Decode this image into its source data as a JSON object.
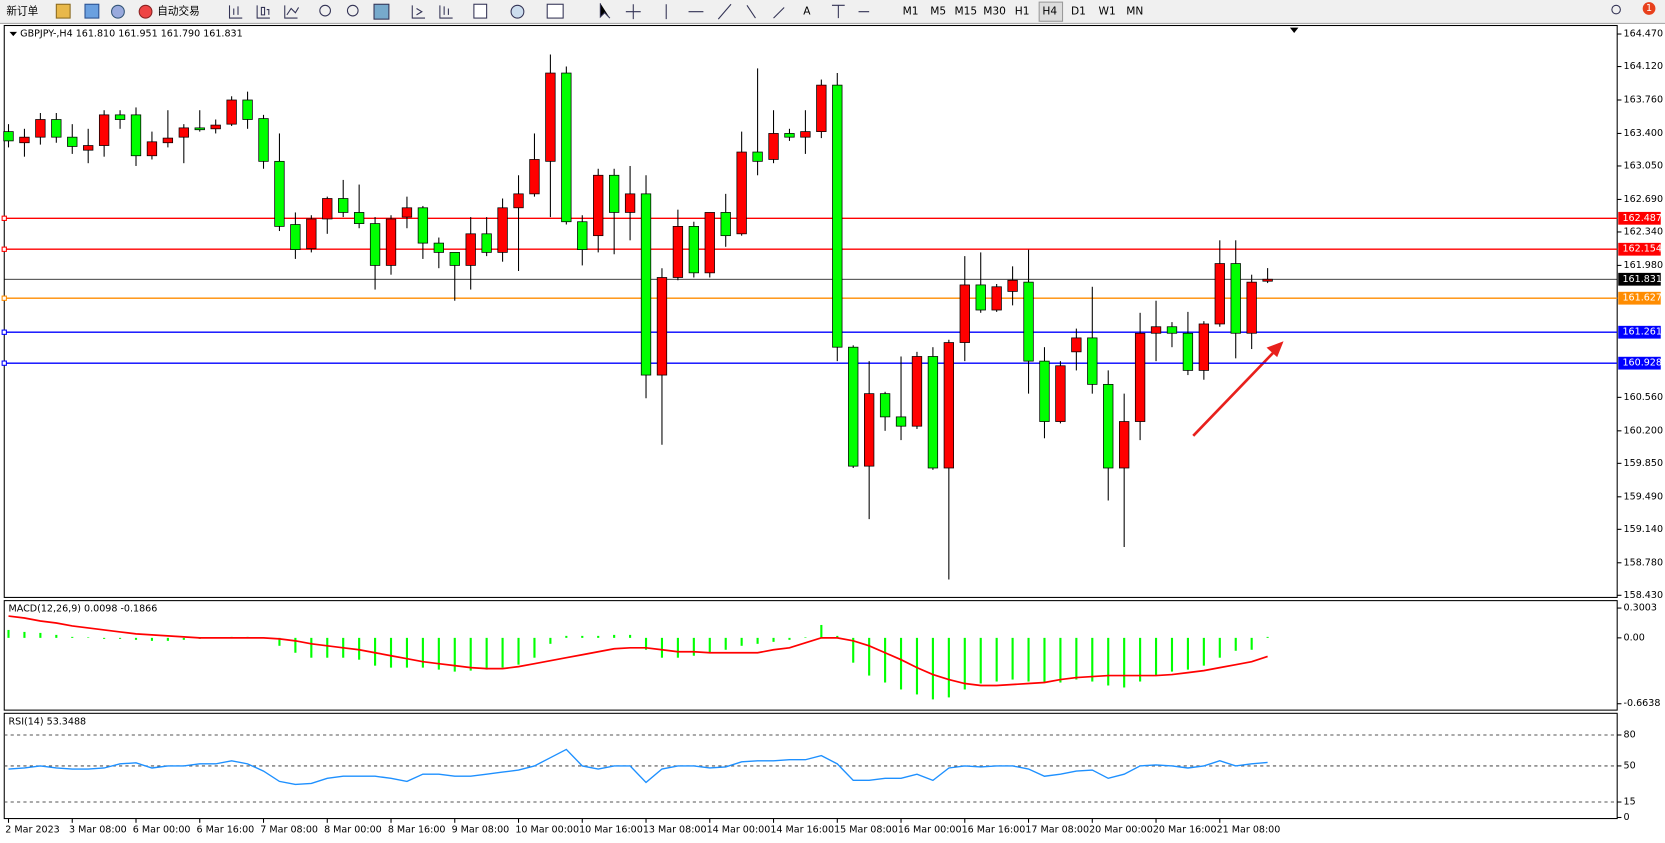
{
  "toolbar": {
    "new_order": "新订单",
    "auto_trading": "自动交易",
    "timeframes": [
      "M1",
      "M5",
      "M15",
      "M30",
      "H1",
      "H4",
      "D1",
      "W1",
      "MN"
    ],
    "badge": "1"
  },
  "chart_data": [
    {
      "type": "candlestick",
      "title": "GBPJPY-,H4  161.810 161.951 161.790 161.831",
      "categories": [
        "2 Mar 2023",
        null,
        null,
        null,
        "3 Mar 08:00",
        null,
        null,
        null,
        "6 Mar 00:00",
        null,
        null,
        null,
        "6 Mar 16:00",
        null,
        null,
        null,
        "7 Mar 08:00",
        null,
        null,
        null,
        "8 Mar 00:00",
        null,
        null,
        null,
        "8 Mar 16:00",
        null,
        null,
        null,
        "9 Mar 08:00",
        null,
        null,
        null,
        "10 Mar 00:00",
        null,
        null,
        null,
        "10 Mar 16:00",
        null,
        null,
        null,
        "13 Mar 08:00",
        null,
        null,
        null,
        "14 Mar 00:00",
        null,
        null,
        null,
        "14 Mar 16:00",
        null,
        null,
        null,
        "15 Mar 08:00",
        null,
        null,
        null,
        "16 Mar 00:00",
        null,
        null,
        null,
        "16 Mar 16:00",
        null,
        null,
        null,
        "17 Mar 08:00",
        null,
        null,
        null,
        "20 Mar 00:00",
        null,
        null,
        null,
        "20 Mar 16:00",
        null,
        null,
        null,
        "21 Mar 08:00",
        null,
        null,
        null
      ],
      "open": [
        163.42,
        163.3,
        163.36,
        163.55,
        163.36,
        163.22,
        163.27,
        163.6,
        163.6,
        163.16,
        163.3,
        163.36,
        163.46,
        163.45,
        163.5,
        163.76,
        163.56,
        163.1,
        162.42,
        162.16,
        162.48,
        162.7,
        162.55,
        162.43,
        161.98,
        162.5,
        162.6,
        162.22,
        162.12,
        161.98,
        162.32,
        162.12,
        162.6,
        162.75,
        163.1,
        164.05,
        162.45,
        162.3,
        162.95,
        162.55,
        162.75,
        160.8,
        161.85,
        162.4,
        161.9,
        162.55,
        162.32,
        163.2,
        163.12,
        163.4,
        163.36,
        163.42,
        163.92,
        161.1,
        159.82,
        160.6,
        160.35,
        160.25,
        161.0,
        159.8,
        161.15,
        161.77,
        161.5,
        161.7,
        161.8,
        160.95,
        160.3,
        161.05,
        161.2,
        160.7,
        159.8,
        160.3,
        161.25,
        161.32,
        161.25,
        160.85,
        161.35,
        162.0,
        161.25,
        161.81
      ],
      "high": [
        163.5,
        163.45,
        163.62,
        163.62,
        163.5,
        163.45,
        163.65,
        163.65,
        163.68,
        163.42,
        163.65,
        163.5,
        163.65,
        163.55,
        163.8,
        163.85,
        163.6,
        163.4,
        162.55,
        162.52,
        162.72,
        162.9,
        162.85,
        162.5,
        162.52,
        162.72,
        162.62,
        162.28,
        162.12,
        162.5,
        162.5,
        162.7,
        162.95,
        163.4,
        164.25,
        164.12,
        162.52,
        163.02,
        163.02,
        163.05,
        162.95,
        161.95,
        162.58,
        162.45,
        162.55,
        162.75,
        163.42,
        164.1,
        163.65,
        163.45,
        163.65,
        163.98,
        164.05,
        161.12,
        160.95,
        160.62,
        161.0,
        161.05,
        161.1,
        161.18,
        162.08,
        162.12,
        161.78,
        161.97,
        162.15,
        161.1,
        160.95,
        161.3,
        161.75,
        160.85,
        160.6,
        161.47,
        161.6,
        161.37,
        161.48,
        161.38,
        162.25,
        162.25,
        161.88,
        161.951
      ],
      "low": [
        163.25,
        163.15,
        163.28,
        163.3,
        163.18,
        163.08,
        163.15,
        163.45,
        163.05,
        163.12,
        163.25,
        163.08,
        163.42,
        163.4,
        163.48,
        163.45,
        163.02,
        162.35,
        162.05,
        162.12,
        162.32,
        162.5,
        162.38,
        161.72,
        161.88,
        162.38,
        162.05,
        161.95,
        161.6,
        161.72,
        162.08,
        162.02,
        161.92,
        162.72,
        162.5,
        162.42,
        161.98,
        162.12,
        162.1,
        162.25,
        160.55,
        160.05,
        161.82,
        161.85,
        161.85,
        162.18,
        162.3,
        162.95,
        163.08,
        163.32,
        163.18,
        163.35,
        160.95,
        159.8,
        159.25,
        160.2,
        160.1,
        160.22,
        159.78,
        158.6,
        160.95,
        161.47,
        161.48,
        161.55,
        160.6,
        160.12,
        160.28,
        160.85,
        160.6,
        159.45,
        158.95,
        160.1,
        160.95,
        161.1,
        160.8,
        160.75,
        161.32,
        160.98,
        161.08,
        161.79
      ],
      "close": [
        163.32,
        163.36,
        163.55,
        163.36,
        163.26,
        163.27,
        163.6,
        163.55,
        163.16,
        163.31,
        163.35,
        163.46,
        163.44,
        163.49,
        163.76,
        163.55,
        163.1,
        162.4,
        162.15,
        162.48,
        162.7,
        162.55,
        162.43,
        161.98,
        162.48,
        162.6,
        162.22,
        162.12,
        161.98,
        162.32,
        162.12,
        162.6,
        162.75,
        163.12,
        164.05,
        162.45,
        162.15,
        162.95,
        162.55,
        162.75,
        160.8,
        161.85,
        162.4,
        161.9,
        162.55,
        162.3,
        163.2,
        163.1,
        163.4,
        163.36,
        163.42,
        163.92,
        161.1,
        159.82,
        160.6,
        160.35,
        160.25,
        161.0,
        159.8,
        161.15,
        161.77,
        161.5,
        161.75,
        161.82,
        160.95,
        160.3,
        160.9,
        161.2,
        160.7,
        159.8,
        160.3,
        161.25,
        161.32,
        161.25,
        160.85,
        161.35,
        162.0,
        161.25,
        161.8,
        161.831
      ],
      "up_color": "#ff0000",
      "down_color": "#00ff00",
      "ylim": [
        158.43,
        164.47
      ],
      "yticks": [
        {
          "value": 164.47,
          "label": "164.470"
        },
        {
          "value": 164.12,
          "label": "164.120"
        },
        {
          "value": 163.76,
          "label": "163.760"
        },
        {
          "value": 163.4,
          "label": "163.400"
        },
        {
          "value": 163.05,
          "label": "163.050"
        },
        {
          "value": 162.69,
          "label": "162.690"
        },
        {
          "value": 162.34,
          "label": "162.340"
        },
        {
          "value": 161.98,
          "label": "161.980"
        },
        {
          "value": 160.56,
          "label": "160.560"
        },
        {
          "value": 160.2,
          "label": "160.200"
        },
        {
          "value": 159.85,
          "label": "159.850"
        },
        {
          "value": 159.49,
          "label": "159.490"
        },
        {
          "value": 159.14,
          "label": "159.140"
        },
        {
          "value": 158.78,
          "label": "158.780"
        },
        {
          "value": 158.43,
          "label": "158.430"
        }
      ],
      "levels": [
        {
          "value": 162.487,
          "color": "#ff0000"
        },
        {
          "value": 162.154,
          "color": "#ff0000"
        },
        {
          "value": 161.627,
          "color": "#ff8c00"
        },
        {
          "value": 161.261,
          "color": "#0000ff"
        },
        {
          "value": 160.928,
          "color": "#0000ff"
        }
      ],
      "last_price": {
        "value": 161.831,
        "color": "#000000"
      }
    },
    {
      "type": "macd",
      "title": "MACD(12,26,9) 0.0098 -0.1866",
      "histogram": [
        0.08,
        0.06,
        0.05,
        0.03,
        0.01,
        0.0,
        -0.01,
        -0.01,
        -0.02,
        -0.03,
        -0.03,
        -0.02,
        -0.01,
        0.0,
        0.01,
        0.01,
        0.0,
        -0.08,
        -0.15,
        -0.2,
        -0.2,
        -0.2,
        -0.22,
        -0.28,
        -0.3,
        -0.3,
        -0.3,
        -0.32,
        -0.34,
        -0.33,
        -0.32,
        -0.3,
        -0.27,
        -0.2,
        -0.06,
        0.02,
        0.02,
        0.02,
        0.03,
        0.03,
        -0.12,
        -0.2,
        -0.2,
        -0.18,
        -0.15,
        -0.12,
        -0.08,
        -0.06,
        -0.04,
        -0.02,
        0.0,
        0.13,
        0.02,
        -0.25,
        -0.38,
        -0.45,
        -0.52,
        -0.57,
        -0.62,
        -0.6,
        -0.52,
        -0.46,
        -0.44,
        -0.42,
        -0.44,
        -0.45,
        -0.45,
        -0.42,
        -0.44,
        -0.48,
        -0.5,
        -0.44,
        -0.38,
        -0.34,
        -0.32,
        -0.28,
        -0.2,
        -0.13,
        -0.12,
        0.0098
      ],
      "signal": [
        0.22,
        0.2,
        0.17,
        0.15,
        0.12,
        0.1,
        0.08,
        0.06,
        0.04,
        0.03,
        0.02,
        0.01,
        0.0,
        0.0,
        0.0,
        0.0,
        0.0,
        -0.01,
        -0.03,
        -0.06,
        -0.08,
        -0.1,
        -0.12,
        -0.15,
        -0.18,
        -0.21,
        -0.24,
        -0.26,
        -0.28,
        -0.3,
        -0.31,
        -0.31,
        -0.29,
        -0.26,
        -0.23,
        -0.2,
        -0.17,
        -0.14,
        -0.11,
        -0.1,
        -0.1,
        -0.12,
        -0.14,
        -0.14,
        -0.15,
        -0.15,
        -0.15,
        -0.15,
        -0.12,
        -0.1,
        -0.05,
        0.0,
        0.0,
        -0.03,
        -0.08,
        -0.15,
        -0.22,
        -0.3,
        -0.37,
        -0.42,
        -0.46,
        -0.48,
        -0.48,
        -0.47,
        -0.46,
        -0.45,
        -0.42,
        -0.4,
        -0.39,
        -0.38,
        -0.38,
        -0.38,
        -0.38,
        -0.37,
        -0.35,
        -0.33,
        -0.3,
        -0.27,
        -0.24,
        -0.1866
      ],
      "histogram_color": "#00ff00",
      "signal_color": "#ff0000",
      "ylim": [
        -0.6638,
        0.3003
      ],
      "yticks": [
        0.3003,
        {
          "value": 0,
          "label": "0.00"
        },
        -0.6638
      ]
    },
    {
      "type": "line",
      "title": "RSI(14) 53.3488",
      "values": [
        47,
        48,
        50,
        48,
        47,
        47,
        48,
        52,
        53,
        48,
        50,
        50,
        52,
        52,
        55,
        52,
        45,
        35,
        32,
        33,
        38,
        40,
        40,
        40,
        38,
        35,
        42,
        42,
        40,
        40,
        42,
        44,
        46,
        50,
        58,
        66,
        50,
        47,
        50,
        50,
        34,
        47,
        50,
        50,
        48,
        49,
        54,
        55,
        55,
        56,
        56,
        60,
        52,
        36,
        36,
        38,
        38,
        42,
        36,
        48,
        50,
        49,
        50,
        50,
        47,
        40,
        42,
        45,
        46,
        38,
        42,
        50,
        51,
        50,
        48,
        50,
        55,
        50,
        52,
        53.3488
      ],
      "color": "#1e90ff",
      "ylim": [
        0,
        100
      ],
      "yticks": [
        80,
        50,
        15,
        0
      ],
      "levels": [
        80,
        50,
        15
      ]
    }
  ]
}
